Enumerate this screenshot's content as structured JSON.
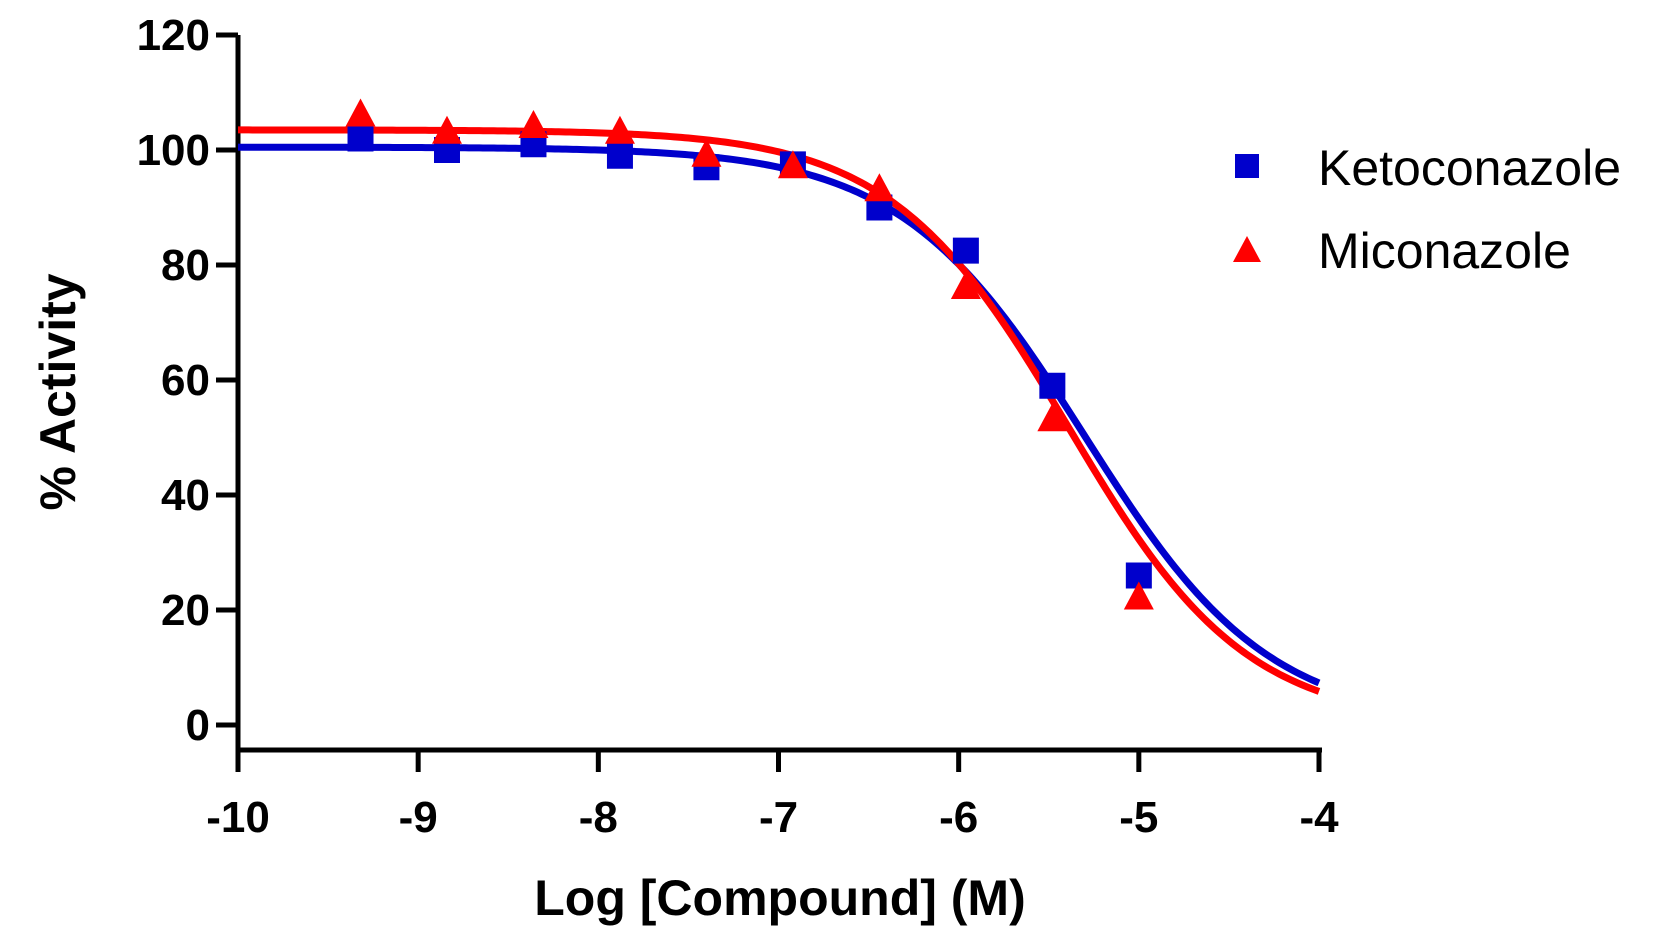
{
  "chart_data": {
    "type": "scatter",
    "title": "",
    "xlabel": "Log [Compound] (M)",
    "ylabel": "% Activity",
    "xlim": [
      -10,
      -4
    ],
    "ylim": [
      0,
      120
    ],
    "xticks": [
      -10,
      -9,
      -8,
      -7,
      -6,
      -5,
      -4
    ],
    "yticks": [
      0,
      20,
      40,
      60,
      80,
      100,
      120
    ],
    "xtick_labels": [
      "-10",
      "-9",
      "-8",
      "-7",
      "-6",
      "-5",
      "-4"
    ],
    "ytick_labels": [
      "0",
      "20",
      "40",
      "60",
      "80",
      "100",
      "120"
    ],
    "grid": false,
    "legend_position": "right",
    "series": [
      {
        "name": "Ketoconazole",
        "marker": "square",
        "color": "#0000cc",
        "x": [
          -9.32,
          -8.84,
          -8.36,
          -7.88,
          -7.4,
          -6.92,
          -6.44,
          -5.96,
          -5.48,
          -5.0
        ],
        "y": [
          102,
          100,
          101,
          99,
          97,
          97.5,
          90,
          82.5,
          59,
          26
        ],
        "fit": {
          "type": "sigmoid",
          "top": 100.5,
          "bottom": 0,
          "log_ic50": -5.3,
          "hill": -0.85
        }
      },
      {
        "name": "Miconazole",
        "marker": "triangle",
        "color": "#ff0000",
        "x": [
          -9.32,
          -8.84,
          -8.36,
          -7.88,
          -7.4,
          -6.92,
          -6.44,
          -5.96,
          -5.48,
          -5.0
        ],
        "y": [
          106,
          103,
          104,
          103,
          99,
          97,
          93,
          76,
          53,
          22
        ],
        "fit": {
          "type": "sigmoid",
          "top": 103.5,
          "bottom": 0,
          "log_ic50": -5.39,
          "hill": -0.88
        }
      }
    ]
  }
}
